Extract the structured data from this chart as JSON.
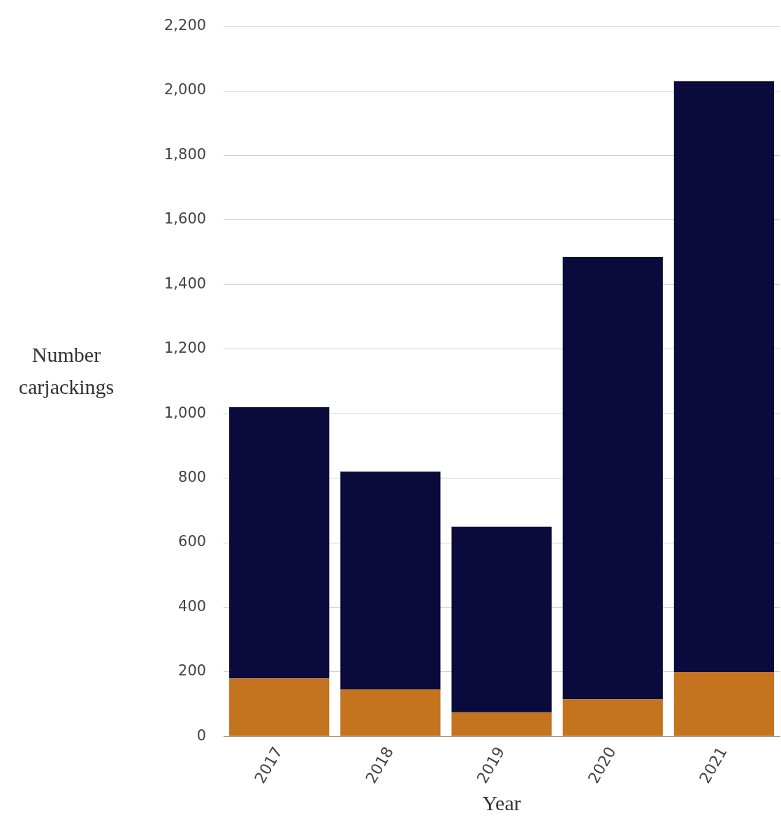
{
  "chart_data": {
    "type": "bar",
    "stacked": true,
    "xlabel": "Year",
    "ylabel": "Number carjackings",
    "categories": [
      "2017",
      "2018",
      "2019",
      "2020",
      "2021"
    ],
    "series": [
      {
        "color": "#c4731f",
        "values": [
          180,
          145,
          75,
          115,
          200
        ]
      },
      {
        "color": "#0a0a3c",
        "values": [
          840,
          675,
          575,
          1370,
          1830
        ]
      }
    ],
    "ylim": [
      0,
      2200
    ],
    "yticks": [
      {
        "value": 0,
        "label": "0"
      },
      {
        "value": 200,
        "label": "200"
      },
      {
        "value": 400,
        "label": "400"
      },
      {
        "value": 600,
        "label": "600"
      },
      {
        "value": 800,
        "label": "800"
      },
      {
        "value": 1000,
        "label": "1,000"
      },
      {
        "value": 1200,
        "label": "1,200"
      },
      {
        "value": 1400,
        "label": "1,400"
      },
      {
        "value": 1600,
        "label": "1,600"
      },
      {
        "value": 1800,
        "label": "1,800"
      },
      {
        "value": 2000,
        "label": "2,000"
      },
      {
        "value": 2200,
        "label": "2,200"
      }
    ],
    "grid": "y",
    "legend": false
  }
}
